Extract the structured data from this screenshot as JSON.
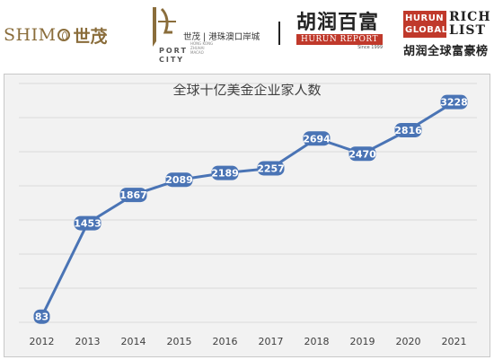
{
  "logos": {
    "shimao_latin": "SHIM",
    "shimao_latin_end": "",
    "shimao_cn": "世茂",
    "port_city_cn": "世茂 | 港珠澳口岸城",
    "port_city_en_1": "PORT",
    "port_city_en_2": "CITY",
    "port_city_small": "HONG KONG ZHUHAI MACAO",
    "hurun_cn": "胡润百富",
    "hurun_report": "HURUN REPORT",
    "hurun_since": "Since 1999",
    "richlist_red": "HURUN GLOBAL",
    "richlist_black": "RICH LIST",
    "richlist_cn": "胡润全球富豪榜"
  },
  "colors": {
    "line": "#4a74b5",
    "marker": "#4a74b5",
    "grid": "#d9d9d9",
    "background": "#f2f2f2"
  },
  "chart_data": {
    "type": "line",
    "title": "全球十亿美金企业家人数",
    "xlabel": "",
    "ylabel": "",
    "categories": [
      "2012",
      "2013",
      "2014",
      "2015",
      "2016",
      "2017",
      "2018",
      "2019",
      "2020",
      "2021"
    ],
    "values": [
      83,
      1453,
      1867,
      2089,
      2189,
      2257,
      2694,
      2470,
      2816,
      3228
    ],
    "ylim": [
      0,
      3500
    ],
    "grid": true,
    "legend": "none"
  }
}
